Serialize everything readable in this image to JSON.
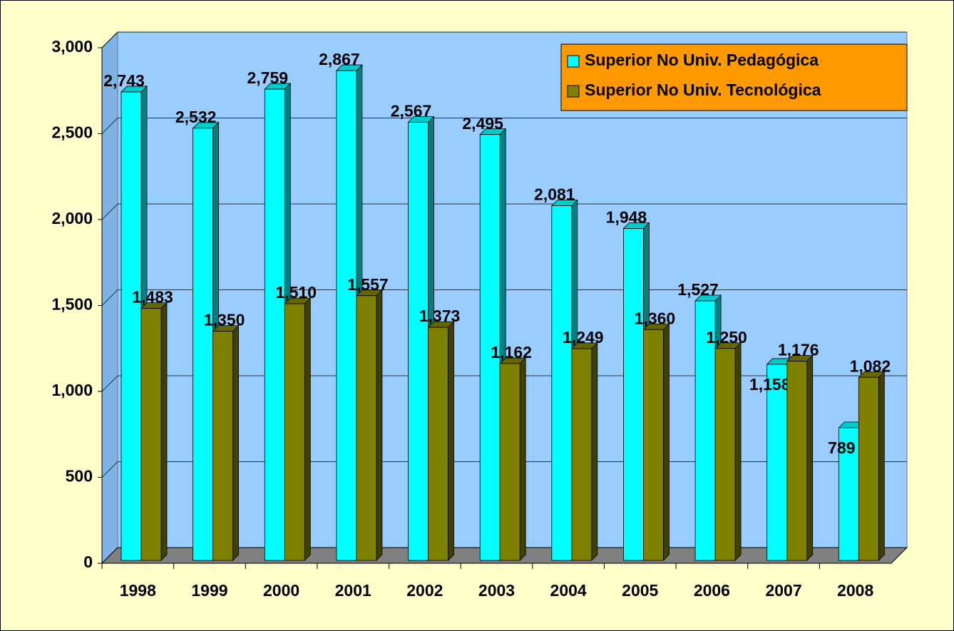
{
  "chart_data": {
    "type": "bar3d",
    "categories": [
      "1998",
      "1999",
      "2000",
      "2001",
      "2002",
      "2003",
      "2004",
      "2005",
      "2006",
      "2007",
      "2008"
    ],
    "series": [
      {
        "name": "Superior No Univ. Pedagógica",
        "color": "#00ffff",
        "values": [
          2743,
          2532,
          2759,
          2867,
          2567,
          2495,
          2081,
          1948,
          1527,
          1158,
          789
        ],
        "value_labels": [
          "2,743",
          "2,532",
          "2,759",
          "2,867",
          "2,567",
          "2,495",
          "2,081",
          "1,948",
          "1,527",
          "1,158",
          "789"
        ]
      },
      {
        "name": "Superior No Univ. Tecnológica",
        "color": "#808000",
        "values": [
          1483,
          1350,
          1510,
          1557,
          1373,
          1162,
          1249,
          1360,
          1250,
          1176,
          1082
        ],
        "value_labels": [
          "1,483",
          "1,350",
          "1,510",
          "1,557",
          "1,373",
          "1,162",
          "1,249",
          "1,360",
          "1,250",
          "1,176",
          "1,082"
        ]
      }
    ],
    "ylim": [
      0,
      3000
    ],
    "yticks": [
      0,
      {
        "value": 500,
        "label": "500"
      },
      {
        "value": 1000,
        "label": "1,000"
      },
      {
        "value": 1500,
        "label": "1,500"
      },
      {
        "value": 2000,
        "label": "2,000"
      },
      {
        "value": 2500,
        "label": "2,500"
      },
      {
        "value": 3000,
        "label": "3,000"
      }
    ],
    "grid": true,
    "legend": "upper right"
  }
}
